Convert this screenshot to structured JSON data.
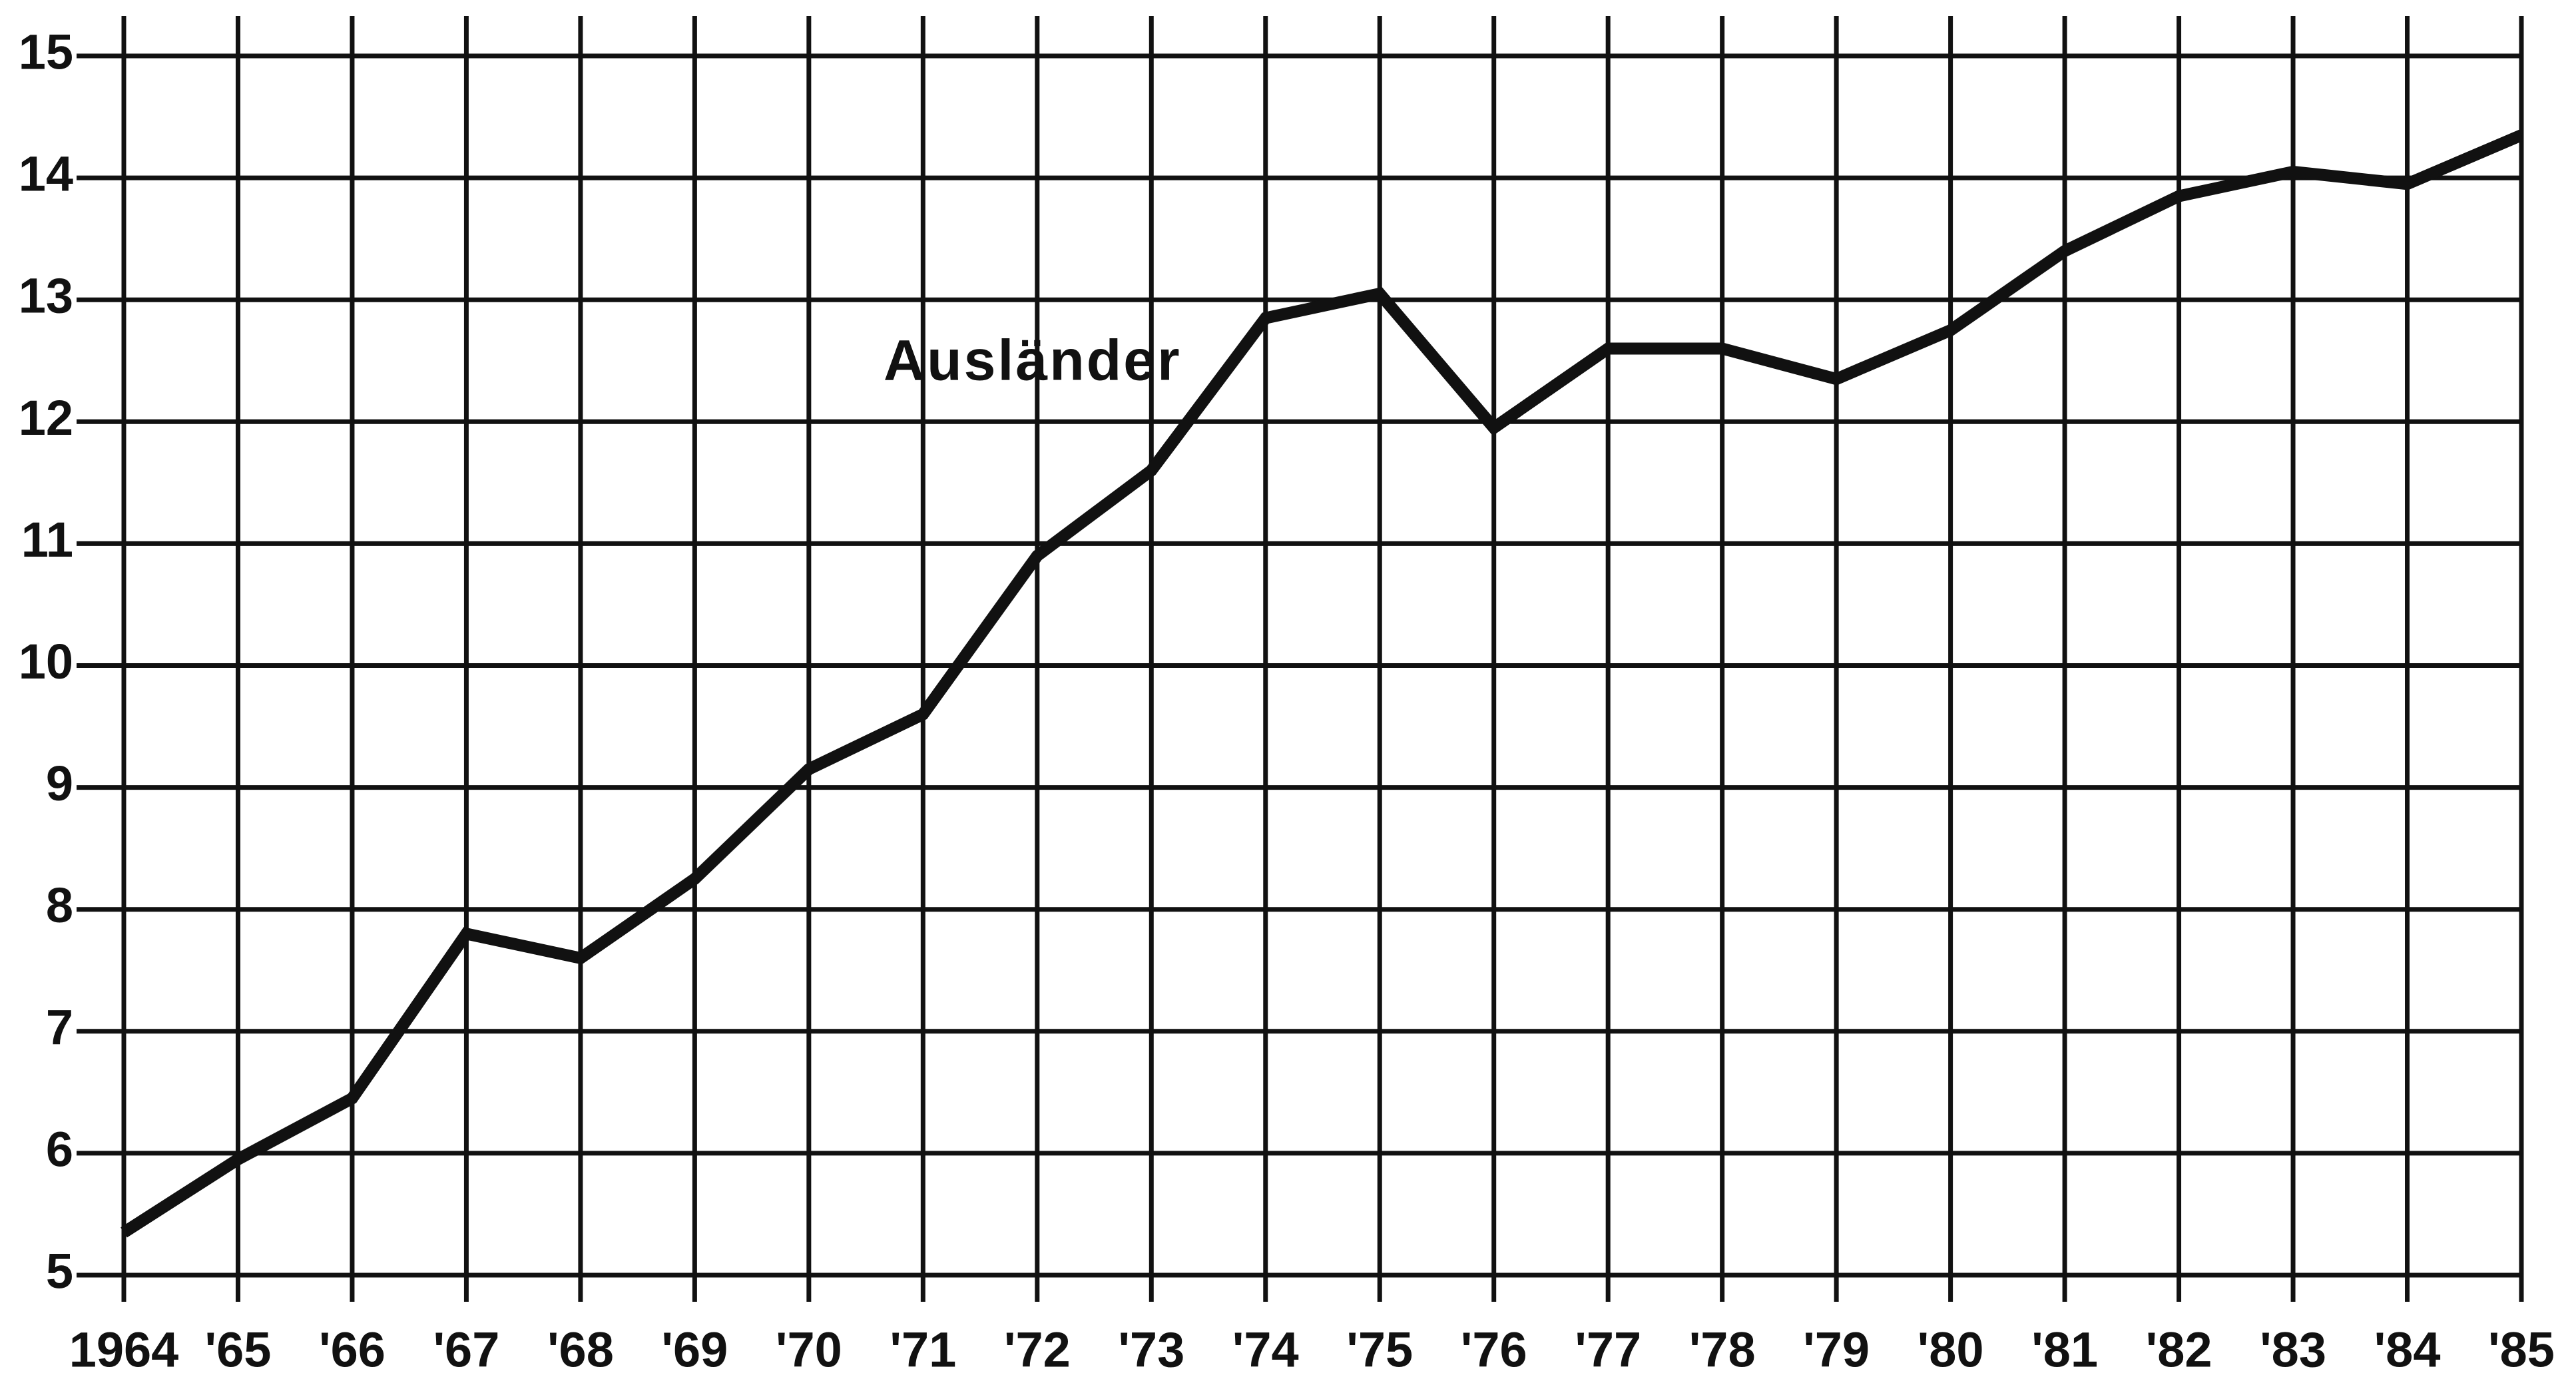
{
  "chart_data": {
    "type": "line",
    "categories": [
      "1964",
      "'65",
      "'66",
      "'67",
      "'68",
      "'69",
      "'70",
      "'71",
      "'72",
      "'73",
      "'74",
      "'75",
      "'76",
      "'77",
      "'78",
      "'79",
      "'80",
      "'81",
      "'82",
      "'83",
      "'84",
      "'85"
    ],
    "series": [
      {
        "name": "Ausländer",
        "color": "#111111",
        "values": [
          5.35,
          5.95,
          6.45,
          7.8,
          7.6,
          8.25,
          9.15,
          9.6,
          10.9,
          11.6,
          12.85,
          13.05,
          11.95,
          12.6,
          12.6,
          12.35,
          12.75,
          13.4,
          13.85,
          14.05,
          13.95,
          14.35
        ]
      }
    ],
    "ylim": [
      5,
      15
    ],
    "yticks": [
      5,
      6,
      7,
      8,
      9,
      10,
      11,
      12,
      13,
      14,
      15
    ],
    "grid": true
  }
}
